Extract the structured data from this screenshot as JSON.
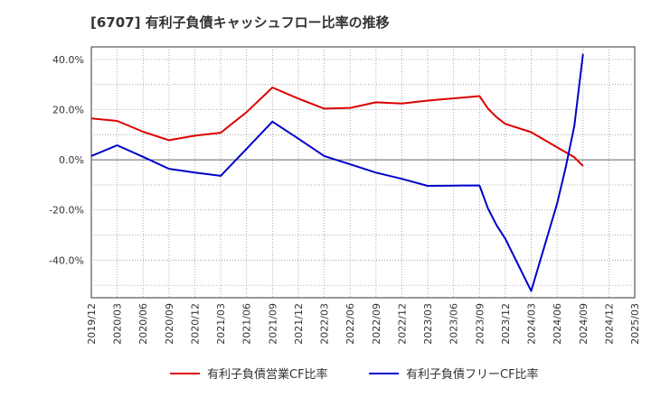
{
  "chart_data": {
    "type": "line",
    "title": "[6707]  有利子負債キャッシュフロー比率の推移",
    "xlabel": "",
    "ylabel": "",
    "x_ticks": [
      "2019/12",
      "2020/03",
      "2020/06",
      "2020/09",
      "2020/12",
      "2021/03",
      "2021/06",
      "2021/09",
      "2021/12",
      "2022/03",
      "2022/06",
      "2022/09",
      "2022/12",
      "2023/03",
      "2023/06",
      "2023/09",
      "2023/12",
      "2024/03",
      "2024/06",
      "2024/09",
      "2024/12",
      "2025/03"
    ],
    "y_ticks": [
      40,
      20,
      0,
      -20,
      -40
    ],
    "y_tick_labels": [
      "40.0%",
      "20.0%",
      "0.0%",
      "-20.0%",
      "-40.0%"
    ],
    "ylim": [
      -55,
      45
    ],
    "grid": true,
    "legend_position": "bottom",
    "series": [
      {
        "name": "有利子負債営業CF比率",
        "color": "#dd0000",
        "x": [
          "2019/12",
          "2020/03",
          "2020/06",
          "2020/09",
          "2020/12",
          "2021/03",
          "2021/06",
          "2021/09",
          "2021/12",
          "2022/03",
          "2022/06",
          "2022/09",
          "2022/12",
          "2023/03",
          "2023/06",
          "2023/09",
          "2023/10",
          "2023/11",
          "2023/12",
          "2024/03",
          "2024/06",
          "2024/08",
          "2024/09"
        ],
        "values": [
          16.5,
          15.5,
          11.2,
          7.8,
          9.6,
          10.8,
          19.0,
          28.8,
          24.4,
          20.4,
          20.7,
          22.9,
          22.4,
          23.6,
          24.5,
          25.4,
          20.4,
          16.9,
          14.3,
          11.0,
          5.0,
          1.0,
          -2.5
        ]
      },
      {
        "name": "有利子負債フリーCF比率",
        "color": "#0000cc",
        "x": [
          "2019/12",
          "2020/03",
          "2020/06",
          "2020/09",
          "2020/12",
          "2021/03",
          "2021/06",
          "2021/09",
          "2021/12",
          "2022/03",
          "2022/06",
          "2022/09",
          "2022/12",
          "2023/03",
          "2023/06",
          "2023/09",
          "2023/10",
          "2023/11",
          "2023/12",
          "2024/03",
          "2024/06",
          "2024/07",
          "2024/08",
          "2024/09"
        ],
        "values": [
          1.5,
          5.8,
          1.2,
          -3.6,
          -5.1,
          -6.4,
          4.4,
          15.2,
          8.4,
          1.5,
          -1.8,
          -5.1,
          -7.6,
          -10.4,
          -10.3,
          -10.2,
          -19.5,
          -26.2,
          -31.5,
          -52.3,
          -17.5,
          -3.0,
          13.5,
          42.2
        ]
      }
    ]
  }
}
